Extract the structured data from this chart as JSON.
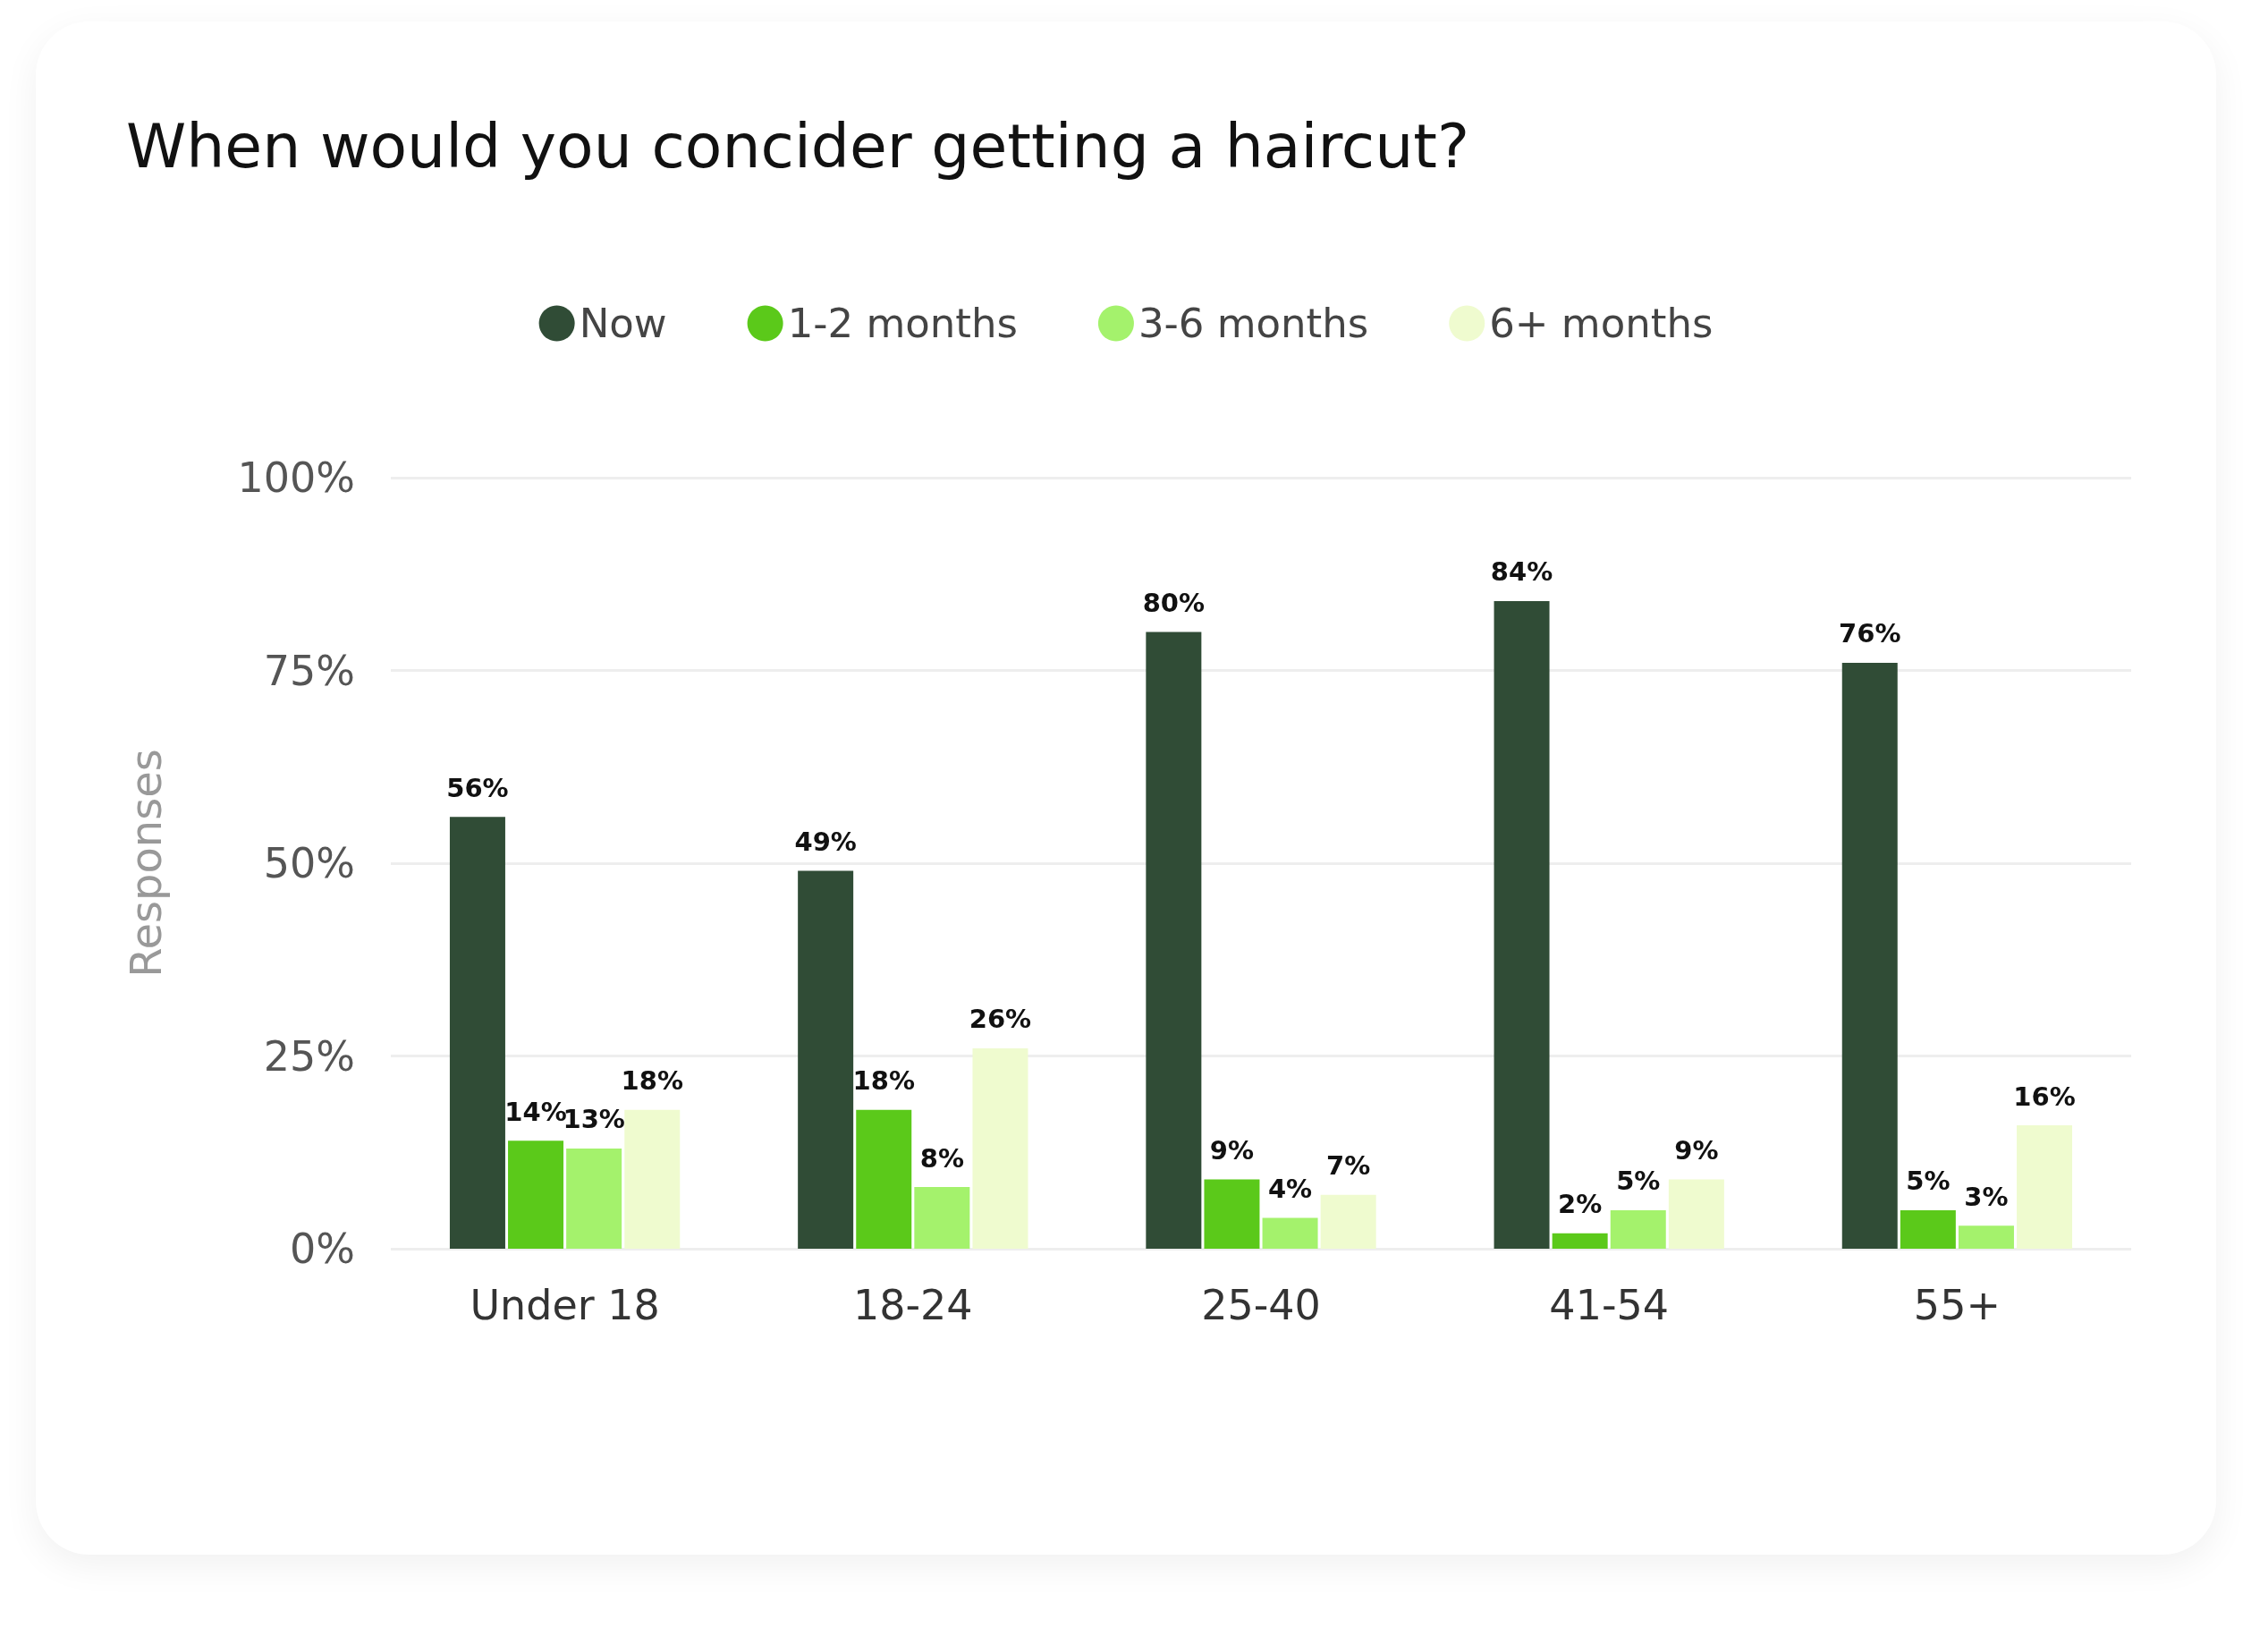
{
  "chart_data": {
    "type": "bar",
    "title": "When would you concider getting a haircut?",
    "ylabel": "Responses",
    "categories": [
      "Under 18",
      "18-24",
      "25-40",
      "41-54",
      "55+"
    ],
    "series": [
      {
        "name": "Now",
        "color": "#304c36",
        "values": [
          56,
          49,
          80,
          84,
          76
        ],
        "value_labels": [
          "56%",
          "49%",
          "80%",
          "84%",
          "76%"
        ]
      },
      {
        "name": "1-2 months",
        "color": "#5bc91a",
        "values": [
          14,
          18,
          9,
          2,
          5
        ],
        "value_labels": [
          "14%",
          "18%",
          "9%",
          "2%",
          "5%"
        ]
      },
      {
        "name": "3-6 months",
        "color": "#a4f26c",
        "values": [
          13,
          8,
          4,
          5,
          3
        ],
        "value_labels": [
          "13%",
          "8%",
          "4%",
          "5%",
          "3%"
        ]
      },
      {
        "name": "6+ months",
        "color": "#effbcf",
        "values": [
          18,
          26,
          7,
          9,
          16
        ],
        "value_labels": [
          "18%",
          "26%",
          "7%",
          "9%",
          "16%"
        ]
      }
    ],
    "ylim": [
      0,
      100
    ],
    "yticks": [
      {
        "value": 0,
        "label": "0%"
      },
      {
        "value": 25,
        "label": "25%"
      },
      {
        "value": 50,
        "label": "50%"
      },
      {
        "value": 75,
        "label": "75%"
      },
      {
        "value": 100,
        "label": "100%"
      }
    ],
    "grid": "y",
    "legend": "top"
  }
}
